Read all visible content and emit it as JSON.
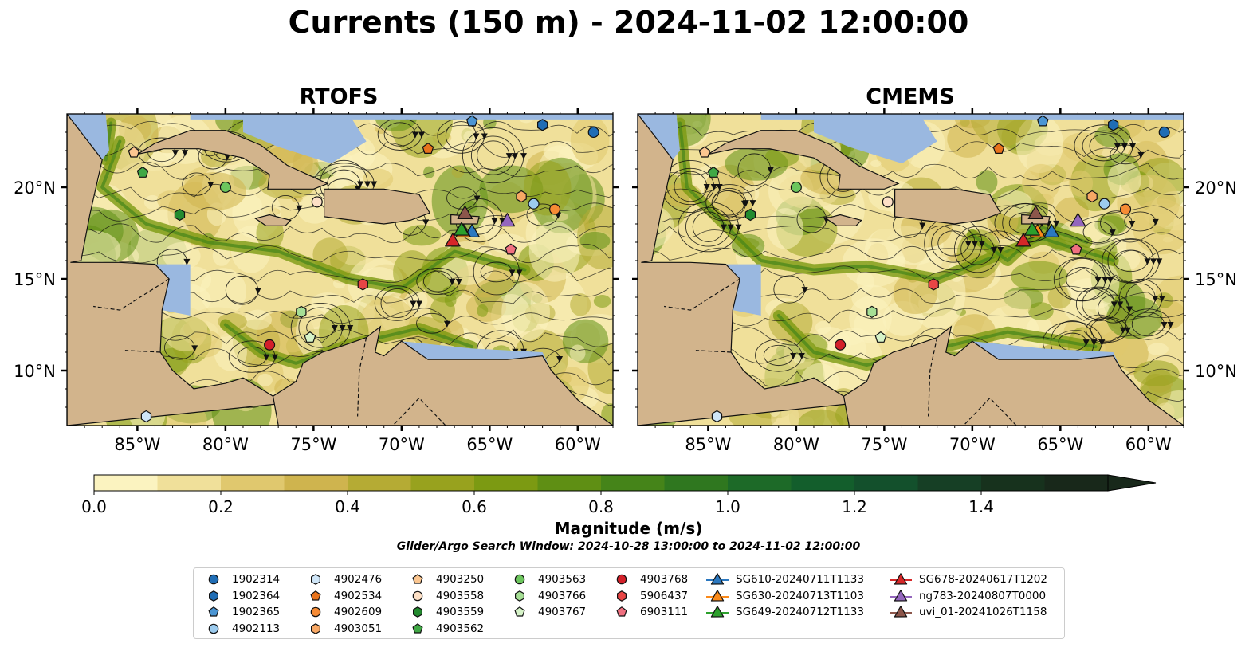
{
  "title": "Currents (150 m) - 2024-11-02 12:00:00",
  "panels": [
    {
      "title": "RTOFS",
      "side": "left"
    },
    {
      "title": "CMEMS",
      "side": "right"
    }
  ],
  "map_axes": {
    "lon_ticks": [
      "85°W",
      "80°W",
      "75°W",
      "70°W",
      "65°W",
      "60°W"
    ],
    "lat_ticks": [
      "20°N",
      "15°N",
      "10°N"
    ],
    "lon_range": [
      -89,
      -58
    ],
    "lat_range": [
      7,
      24
    ]
  },
  "colorbar": {
    "label": "Magnitude (m/s)",
    "ticks": [
      "0.0",
      "0.2",
      "0.4",
      "0.6",
      "0.8",
      "1.0",
      "1.2",
      "1.4"
    ],
    "range": [
      0,
      1.6
    ],
    "extend": "max",
    "colors": [
      "#fbf3c0",
      "#f0e09a",
      "#e0c86e",
      "#cfb44e",
      "#b5ab34",
      "#98a21e",
      "#7c9a12",
      "#5f8f14",
      "#458419",
      "#2f771f",
      "#1d6a28",
      "#135e2c",
      "#13502c",
      "#163f25",
      "#17321d",
      "#18281a"
    ]
  },
  "search_window": "Glider/Argo Search Window: 2024-10-28 13:00:00 to 2024-11-02 12:00:00",
  "colors": {
    "land": "#d2b48c",
    "water": "#9ab8e0"
  },
  "legend": [
    {
      "label": "1902314",
      "marker": "circle",
      "color": "#1f6db5"
    },
    {
      "label": "1902364",
      "marker": "hexagon",
      "color": "#1f6db5"
    },
    {
      "label": "1902365",
      "marker": "pentagon",
      "color": "#4b95d3"
    },
    {
      "label": "4902113",
      "marker": "circle",
      "color": "#9ccbee"
    },
    {
      "label": "4902476",
      "marker": "hexagon",
      "color": "#cfe6f8"
    },
    {
      "label": "4902534",
      "marker": "pentagon",
      "color": "#e8731c"
    },
    {
      "label": "4902609",
      "marker": "circle",
      "color": "#f68b35"
    },
    {
      "label": "4903051",
      "marker": "hexagon",
      "color": "#f8a865"
    },
    {
      "label": "4903250",
      "marker": "pentagon",
      "color": "#fbc690"
    },
    {
      "label": "4903558",
      "marker": "circle",
      "color": "#fde0c6"
    },
    {
      "label": "4903559",
      "marker": "hexagon",
      "color": "#238b2f"
    },
    {
      "label": "4903562",
      "marker": "pentagon",
      "color": "#40a845"
    },
    {
      "label": "4903563",
      "marker": "circle",
      "color": "#6cc65d"
    },
    {
      "label": "4903766",
      "marker": "hexagon",
      "color": "#a6df95"
    },
    {
      "label": "4903767",
      "marker": "pentagon",
      "color": "#d6f3c8"
    },
    {
      "label": "4903768",
      "marker": "circle",
      "color": "#d3202a"
    },
    {
      "label": "5906437",
      "marker": "hexagon",
      "color": "#e84545"
    },
    {
      "label": "6903111",
      "marker": "pentagon",
      "color": "#f07080"
    },
    {
      "label": "SG610-20240711T1133",
      "marker": "triangle",
      "color": "#2b78c0"
    },
    {
      "label": "SG630-20240713T1103",
      "marker": "triangle",
      "color": "#fb8a1a"
    },
    {
      "label": "SG649-20240712T1133",
      "marker": "triangle",
      "color": "#2ca02c"
    },
    {
      "label": "SG678-20240617T1202",
      "marker": "triangle",
      "color": "#d62728"
    },
    {
      "label": "ng783-20240807T0000",
      "marker": "triangle",
      "color": "#9467bd"
    },
    {
      "label": "uvi_01-20241026T1158",
      "marker": "triangle",
      "color": "#8c564b"
    }
  ],
  "platform_positions": [
    {
      "id": "1902314",
      "rtofs": [
        -59.1,
        23.0
      ],
      "cmems": [
        -59.1,
        23.0
      ]
    },
    {
      "id": "1902364",
      "rtofs": [
        -62.0,
        23.4
      ],
      "cmems": [
        -62.0,
        23.4
      ]
    },
    {
      "id": "1902365",
      "rtofs": [
        -66.0,
        23.6
      ],
      "cmems": [
        -66.0,
        23.6
      ]
    },
    {
      "id": "4902113",
      "rtofs": [
        -62.5,
        19.1
      ],
      "cmems": [
        -62.5,
        19.1
      ]
    },
    {
      "id": "4902476",
      "rtofs": [
        -84.5,
        7.5
      ],
      "cmems": [
        -84.5,
        7.5
      ]
    },
    {
      "id": "4902534",
      "rtofs": [
        -68.5,
        22.1
      ],
      "cmems": [
        -68.5,
        22.1
      ]
    },
    {
      "id": "4902609",
      "rtofs": [
        -61.3,
        18.8
      ],
      "cmems": [
        -61.3,
        18.8
      ]
    },
    {
      "id": "4903051",
      "rtofs": [
        -63.2,
        19.5
      ],
      "cmems": [
        -63.2,
        19.5
      ]
    },
    {
      "id": "4903250",
      "rtofs": [
        -85.2,
        21.9
      ],
      "cmems": [
        -85.2,
        21.9
      ]
    },
    {
      "id": "4903558",
      "rtofs": [
        -74.8,
        19.2
      ],
      "cmems": [
        -74.8,
        19.2
      ]
    },
    {
      "id": "4903559",
      "rtofs": [
        -82.6,
        18.5
      ],
      "cmems": [
        -82.6,
        18.5
      ]
    },
    {
      "id": "4903562",
      "rtofs": [
        -84.7,
        20.8
      ],
      "cmems": [
        -84.7,
        20.8
      ]
    },
    {
      "id": "4903563",
      "rtofs": [
        -80.0,
        20.0
      ],
      "cmems": [
        -80.0,
        20.0
      ]
    },
    {
      "id": "4903766",
      "rtofs": [
        -75.7,
        13.2
      ],
      "cmems": [
        -75.7,
        13.2
      ]
    },
    {
      "id": "4903767",
      "rtofs": [
        -75.2,
        11.8
      ],
      "cmems": [
        -75.2,
        11.8
      ]
    },
    {
      "id": "4903768",
      "rtofs": [
        -77.5,
        11.4
      ],
      "cmems": [
        -77.5,
        11.4
      ]
    },
    {
      "id": "5906437",
      "rtofs": [
        -72.2,
        14.7
      ],
      "cmems": [
        -72.2,
        14.7
      ]
    },
    {
      "id": "6903111",
      "rtofs": [
        -63.8,
        16.6
      ],
      "cmems": [
        -64.1,
        16.6
      ]
    },
    {
      "id": "SG610-20240711T1133",
      "rtofs": [
        -66.0,
        17.6
      ],
      "cmems": [
        -65.5,
        17.6
      ]
    },
    {
      "id": "SG630-20240713T1103",
      "rtofs": [
        -66.5,
        17.6
      ],
      "cmems": [
        -66.3,
        17.6
      ]
    },
    {
      "id": "SG649-20240712T1133",
      "rtofs": [
        -66.6,
        17.7
      ],
      "cmems": [
        -66.6,
        17.7
      ]
    },
    {
      "id": "SG678-20240617T1202",
      "rtofs": [
        -67.1,
        17.1
      ],
      "cmems": [
        -67.1,
        17.1
      ]
    },
    {
      "id": "ng783-20240807T0000",
      "rtofs": [
        -64.0,
        18.2
      ],
      "cmems": [
        -64.0,
        18.2
      ]
    },
    {
      "id": "uvi_01-20241026T1158",
      "rtofs": [
        -66.4,
        18.6
      ],
      "cmems": [
        -66.4,
        18.6
      ]
    }
  ]
}
